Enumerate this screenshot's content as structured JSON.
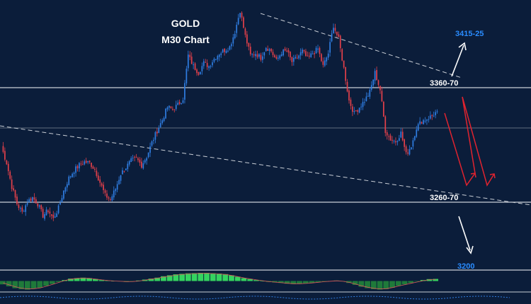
{
  "chart_data": {
    "type": "candlestick",
    "title": "GOLD",
    "subtitle": "M30 Chart",
    "xlabel": "",
    "ylabel": "",
    "ylim": [
      3175,
      3415
    ],
    "grid": false,
    "legend": "none",
    "price_levels": [
      {
        "label": "3360-70",
        "value": 3363
      },
      {
        "label": "3260-70",
        "value": 3265
      }
    ],
    "current_price_line": 3318,
    "targets": [
      {
        "label": "3415-25",
        "direction": "up"
      },
      {
        "label": "3200",
        "direction": "down"
      }
    ],
    "trendlines": {
      "upper": {
        "from": 3410,
        "to": 3367
      },
      "lower": {
        "from": 3322,
        "to": 3260
      }
    },
    "close_path": [
      3285,
      3270,
      3248,
      3232,
      3224,
      3234,
      3238,
      3232,
      3221,
      3226,
      3218,
      3228,
      3244,
      3256,
      3263,
      3268,
      3271,
      3270,
      3264,
      3252,
      3240,
      3236,
      3246,
      3260,
      3266,
      3272,
      3274,
      3268,
      3276,
      3289,
      3300,
      3310,
      3322,
      3320,
      3324,
      3330,
      3370,
      3360,
      3354,
      3363,
      3360,
      3367,
      3372,
      3375,
      3378,
      3392,
      3412,
      3388,
      3370,
      3372,
      3368,
      3378,
      3374,
      3365,
      3373,
      3374,
      3364,
      3368,
      3374,
      3367,
      3372,
      3376,
      3360,
      3372,
      3398,
      3385,
      3358,
      3328,
      3316,
      3322,
      3328,
      3336,
      3354,
      3338,
      3300,
      3292,
      3290,
      3298,
      3278,
      3286,
      3303,
      3309,
      3311,
      3314,
      3318
    ],
    "projection": [
      "down",
      "up",
      "down",
      "up"
    ],
    "oscillator": {
      "type": "histogram",
      "range": [
        -1,
        1
      ],
      "values": [
        -0.35,
        -0.55,
        -0.75,
        -0.85,
        -0.9,
        -0.8,
        -0.7,
        -0.5,
        -0.3,
        -0.1,
        0.1,
        0.25,
        0.3,
        0.35,
        0.3,
        0.2,
        0.1,
        0.05,
        0,
        -0.05,
        -0.1,
        -0.05,
        0.05,
        0.15,
        0.25,
        0.35,
        0.5,
        0.6,
        0.7,
        0.75,
        0.8,
        0.82,
        0.85,
        0.85,
        0.8,
        0.78,
        0.72,
        0.6,
        0.45,
        0.3,
        0.2,
        0.1,
        0,
        -0.1,
        -0.15,
        -0.2,
        -0.28,
        -0.32,
        -0.3,
        -0.25,
        -0.18,
        -0.1,
        -0.05,
        0,
        0.05,
        -0.05,
        -0.2,
        -0.4,
        -0.6,
        -0.75,
        -0.85,
        -0.9,
        -0.85,
        -0.7,
        -0.5,
        -0.35,
        -0.2,
        -0.05,
        0.1,
        0.2,
        0.22
      ],
      "signal_values": [
        -0.2,
        -0.4,
        -0.6,
        -0.75,
        -0.82,
        -0.8,
        -0.72,
        -0.55,
        -0.35,
        -0.15,
        0.05,
        0.2,
        0.28,
        0.3,
        0.28,
        0.2,
        0.12,
        0.05,
        0,
        -0.03,
        -0.06,
        -0.05,
        0,
        0.1,
        0.2,
        0.3,
        0.42,
        0.52,
        0.62,
        0.7,
        0.75,
        0.78,
        0.8,
        0.8,
        0.78,
        0.74,
        0.68,
        0.58,
        0.45,
        0.32,
        0.22,
        0.12,
        0.03,
        -0.06,
        -0.12,
        -0.18,
        -0.24,
        -0.28,
        -0.28,
        -0.25,
        -0.2,
        -0.13,
        -0.07,
        -0.02,
        0.02,
        -0.03,
        -0.15,
        -0.32,
        -0.5,
        -0.65,
        -0.76,
        -0.82,
        -0.8,
        -0.68,
        -0.52,
        -0.38,
        -0.24,
        -0.1,
        0.04,
        0.14,
        0.18
      ]
    },
    "colors": {
      "background": "#0b1d3a",
      "bull": "#2f7de1",
      "bear": "#e2404a",
      "levels": "#c9ced6",
      "trendline": "#c9ced6",
      "projection": "#e0232f",
      "target_arrow": "#ffffff",
      "target_label": "#2a8cff",
      "title": "#ffffff",
      "osc_positive": "#34d35f",
      "osc_negative": "#1f7a3a",
      "osc_signal": "#d85a5a"
    }
  }
}
